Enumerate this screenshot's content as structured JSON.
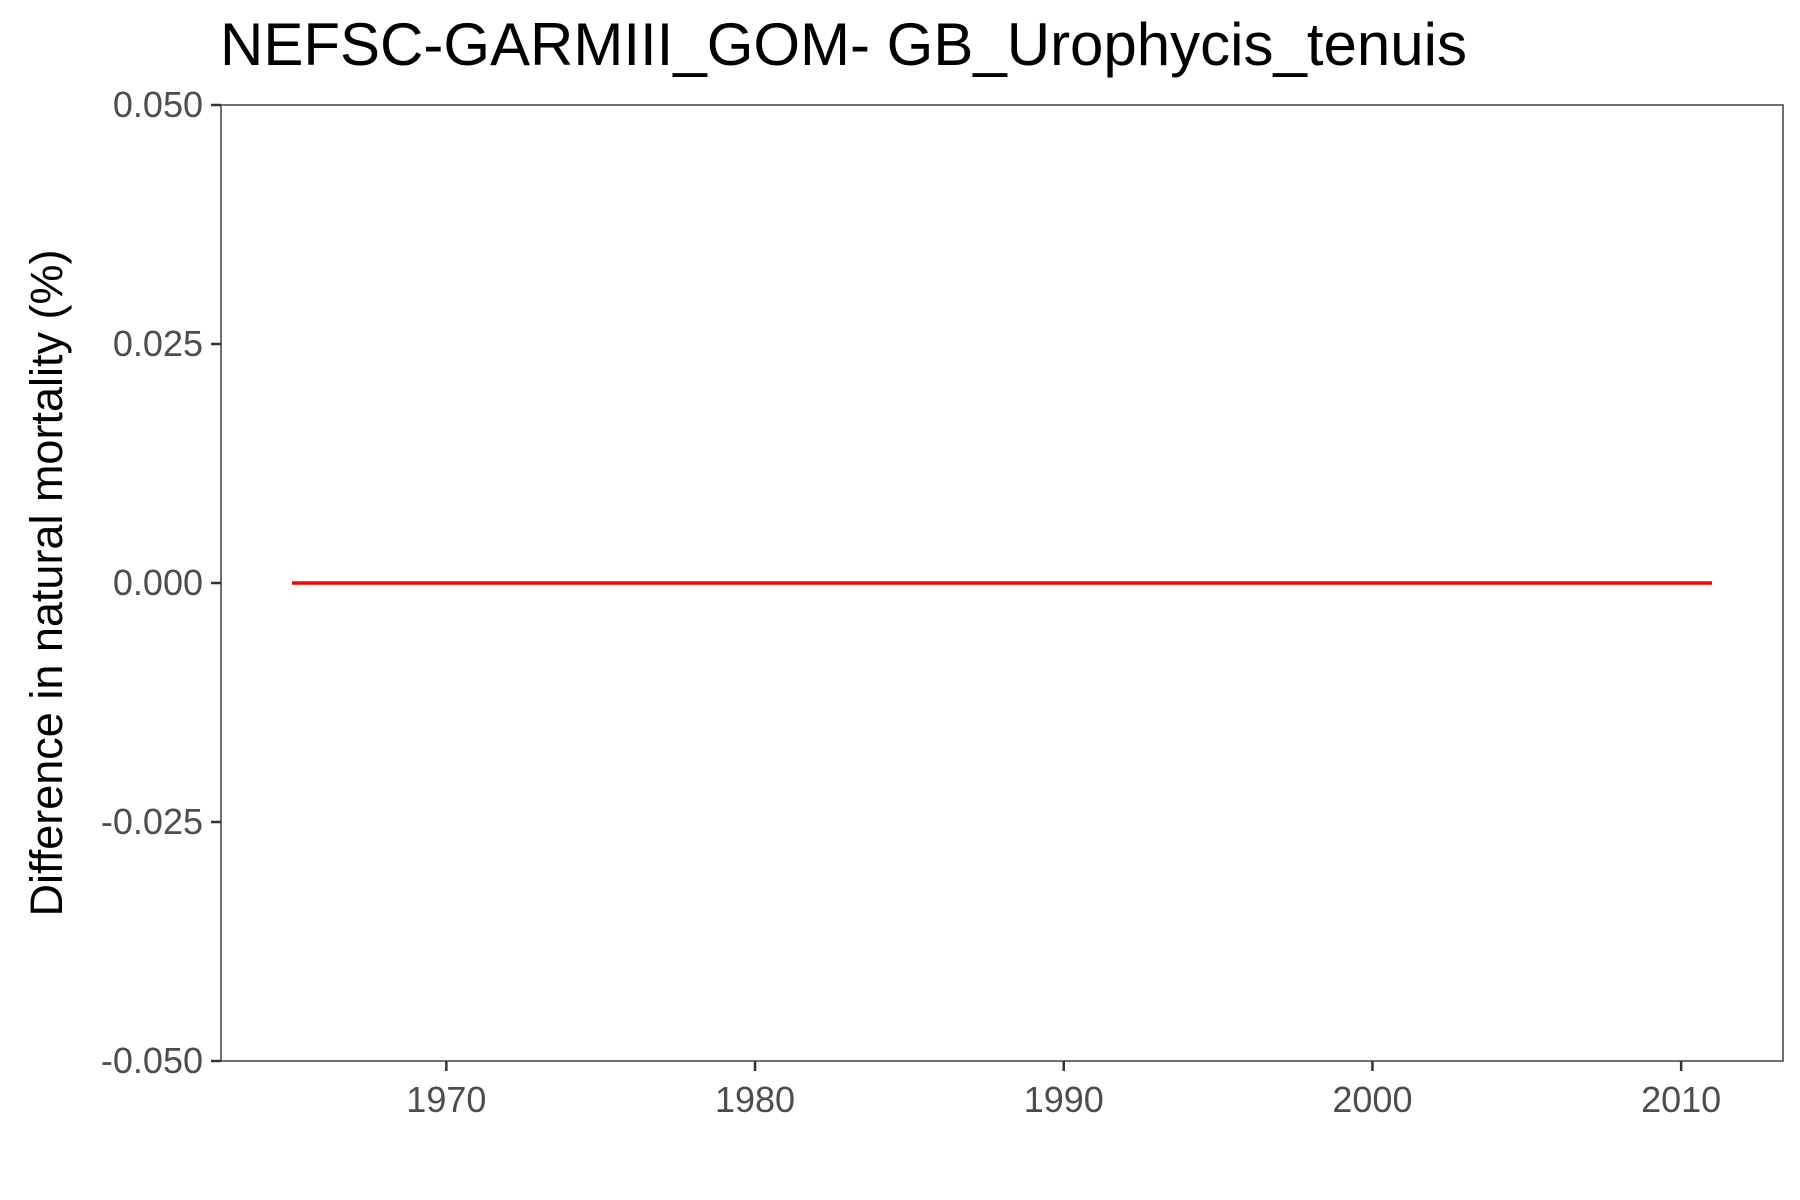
{
  "chart_data": {
    "type": "line",
    "title": "NEFSC-GARMIII_GOM- GB_Urophycis_tenuis",
    "xlabel": "",
    "ylabel": "Difference in natural mortality (%)",
    "xlim": [
      1962.7,
      2013.3
    ],
    "ylim": [
      -0.05,
      0.05
    ],
    "x_ticks": [
      1970,
      1980,
      1990,
      2000,
      2010
    ],
    "x_tick_labels": [
      "1970",
      "1980",
      "1990",
      "2000",
      "2010"
    ],
    "y_ticks": [
      -0.05,
      -0.025,
      0,
      0.025,
      0.05
    ],
    "y_tick_labels": [
      "-0.050",
      "-0.025",
      "0.000",
      "0.025",
      "0.050"
    ],
    "grid": false,
    "series": [
      {
        "color": "#ff0000",
        "x": [
          1965,
          1966,
          1967,
          1968,
          1969,
          1970,
          1971,
          1972,
          1973,
          1974,
          1975,
          1976,
          1977,
          1978,
          1979,
          1980,
          1981,
          1982,
          1983,
          1984,
          1985,
          1986,
          1987,
          1988,
          1989,
          1990,
          1991,
          1992,
          1993,
          1994,
          1995,
          1996,
          1997,
          1998,
          1999,
          2000,
          2001,
          2002,
          2003,
          2004,
          2005,
          2006,
          2007,
          2008,
          2009,
          2010,
          2011
        ],
        "values": [
          0,
          0,
          0,
          0,
          0,
          0,
          0,
          0,
          0,
          0,
          0,
          0,
          0,
          0,
          0,
          0,
          0,
          0,
          0,
          0,
          0,
          0,
          0,
          0,
          0,
          0,
          0,
          0,
          0,
          0,
          0,
          0,
          0,
          0,
          0,
          0,
          0,
          0,
          0,
          0,
          0,
          0,
          0,
          0,
          0,
          0,
          0
        ]
      }
    ]
  }
}
